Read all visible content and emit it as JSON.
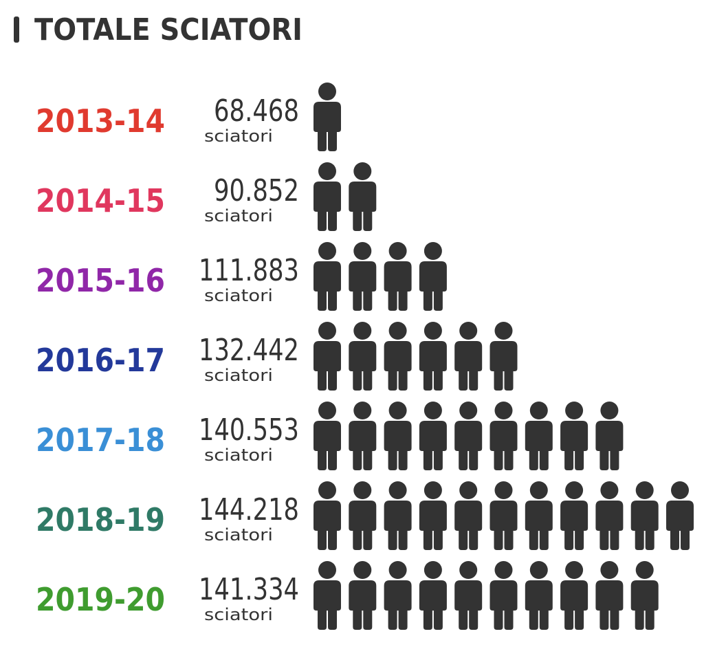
{
  "chart_data": {
    "type": "pictogram",
    "title": "TOTALE SCIATORI",
    "categories": [
      "2013-14",
      "2014-15",
      "2015-16",
      "2016-17",
      "2017-18",
      "2018-19",
      "2019-20"
    ],
    "colors": [
      "#e03a2f",
      "#e0375e",
      "#9027a8",
      "#23399a",
      "#3a8fd6",
      "#2f7a66",
      "#3f9c2f"
    ],
    "values": [
      68468,
      90852,
      111883,
      132442,
      140553,
      144218,
      141334
    ],
    "value_labels": [
      "68.468",
      "90.852",
      "111.883",
      "132.442",
      "140.553",
      "144.218",
      "141.334"
    ],
    "unit_label": "sciatori",
    "icons": [
      1,
      2,
      4,
      6,
      9,
      11,
      10
    ],
    "icon_color": "#333333"
  }
}
